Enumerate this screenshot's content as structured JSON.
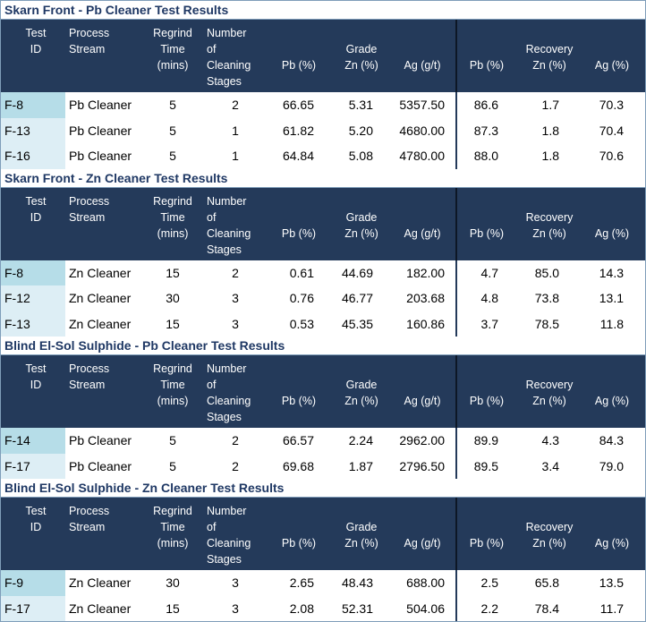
{
  "header_labels": {
    "test": "Test",
    "id": "ID",
    "process": "Process",
    "stream": "Stream",
    "regrind": "Regrind",
    "time": "Time",
    "mins": "(mins)",
    "number": "Number",
    "of": "of",
    "cleaning": "Cleaning",
    "stages": "Stages",
    "grade": "Grade",
    "recovery": "Recovery",
    "pb": "Pb (%)",
    "zn": "Zn (%)",
    "ag": "Ag (g/t)",
    "ag_pct": "Ag (%)"
  },
  "sections": [
    {
      "title": "Skarn Front - Pb Cleaner Test Results",
      "rows": [
        {
          "id": "F-8",
          "stream": "Pb Cleaner",
          "regrind": "5",
          "stages": "2",
          "grade_pb": "66.65",
          "grade_zn": "5.31",
          "grade_ag": "5357.50",
          "rec_pb": "86.6",
          "rec_zn": "1.7",
          "rec_ag": "70.3"
        },
        {
          "id": "F-13",
          "stream": "Pb Cleaner",
          "regrind": "5",
          "stages": "1",
          "grade_pb": "61.82",
          "grade_zn": "5.20",
          "grade_ag": "4680.00",
          "rec_pb": "87.3",
          "rec_zn": "1.8",
          "rec_ag": "70.4"
        },
        {
          "id": "F-16",
          "stream": "Pb Cleaner",
          "regrind": "5",
          "stages": "1",
          "grade_pb": "64.84",
          "grade_zn": "5.08",
          "grade_ag": "4780.00",
          "rec_pb": "88.0",
          "rec_zn": "1.8",
          "rec_ag": "70.6"
        }
      ]
    },
    {
      "title": "Skarn Front - Zn Cleaner Test Results",
      "rows": [
        {
          "id": "F-8",
          "stream": "Zn Cleaner",
          "regrind": "15",
          "stages": "2",
          "grade_pb": "0.61",
          "grade_zn": "44.69",
          "grade_ag": "182.00",
          "rec_pb": "4.7",
          "rec_zn": "85.0",
          "rec_ag": "14.3"
        },
        {
          "id": "F-12",
          "stream": "Zn Cleaner",
          "regrind": "30",
          "stages": "3",
          "grade_pb": "0.76",
          "grade_zn": "46.77",
          "grade_ag": "203.68",
          "rec_pb": "4.8",
          "rec_zn": "73.8",
          "rec_ag": "13.1"
        },
        {
          "id": "F-13",
          "stream": "Zn Cleaner",
          "regrind": "15",
          "stages": "3",
          "grade_pb": "0.53",
          "grade_zn": "45.35",
          "grade_ag": "160.86",
          "rec_pb": "3.7",
          "rec_zn": "78.5",
          "rec_ag": "11.8"
        }
      ]
    },
    {
      "title": "Blind El-Sol Sulphide - Pb Cleaner Test Results",
      "rows": [
        {
          "id": "F-14",
          "stream": "Pb Cleaner",
          "regrind": "5",
          "stages": "2",
          "grade_pb": "66.57",
          "grade_zn": "2.24",
          "grade_ag": "2962.00",
          "rec_pb": "89.9",
          "rec_zn": "4.3",
          "rec_ag": "84.3"
        },
        {
          "id": "F-17",
          "stream": "Pb Cleaner",
          "regrind": "5",
          "stages": "2",
          "grade_pb": "69.68",
          "grade_zn": "1.87",
          "grade_ag": "2796.50",
          "rec_pb": "89.5",
          "rec_zn": "3.4",
          "rec_ag": "79.0"
        }
      ]
    },
    {
      "title": "Blind El-Sol Sulphide - Zn Cleaner Test Results",
      "rows": [
        {
          "id": "F-9",
          "stream": "Zn Cleaner",
          "regrind": "30",
          "stages": "3",
          "grade_pb": "2.65",
          "grade_zn": "48.43",
          "grade_ag": "688.00",
          "rec_pb": "2.5",
          "rec_zn": "65.8",
          "rec_ag": "13.5"
        },
        {
          "id": "F-17",
          "stream": "Zn Cleaner",
          "regrind": "15",
          "stages": "3",
          "grade_pb": "2.08",
          "grade_zn": "52.31",
          "grade_ag": "504.06",
          "rec_pb": "2.2",
          "rec_zn": "78.4",
          "rec_ag": "11.7"
        }
      ]
    }
  ],
  "colors": {
    "header_bg": "#243a5a",
    "title_text": "#1f3864",
    "row_bg": "#dbeef4",
    "id_highlight": "#b6dde8"
  }
}
